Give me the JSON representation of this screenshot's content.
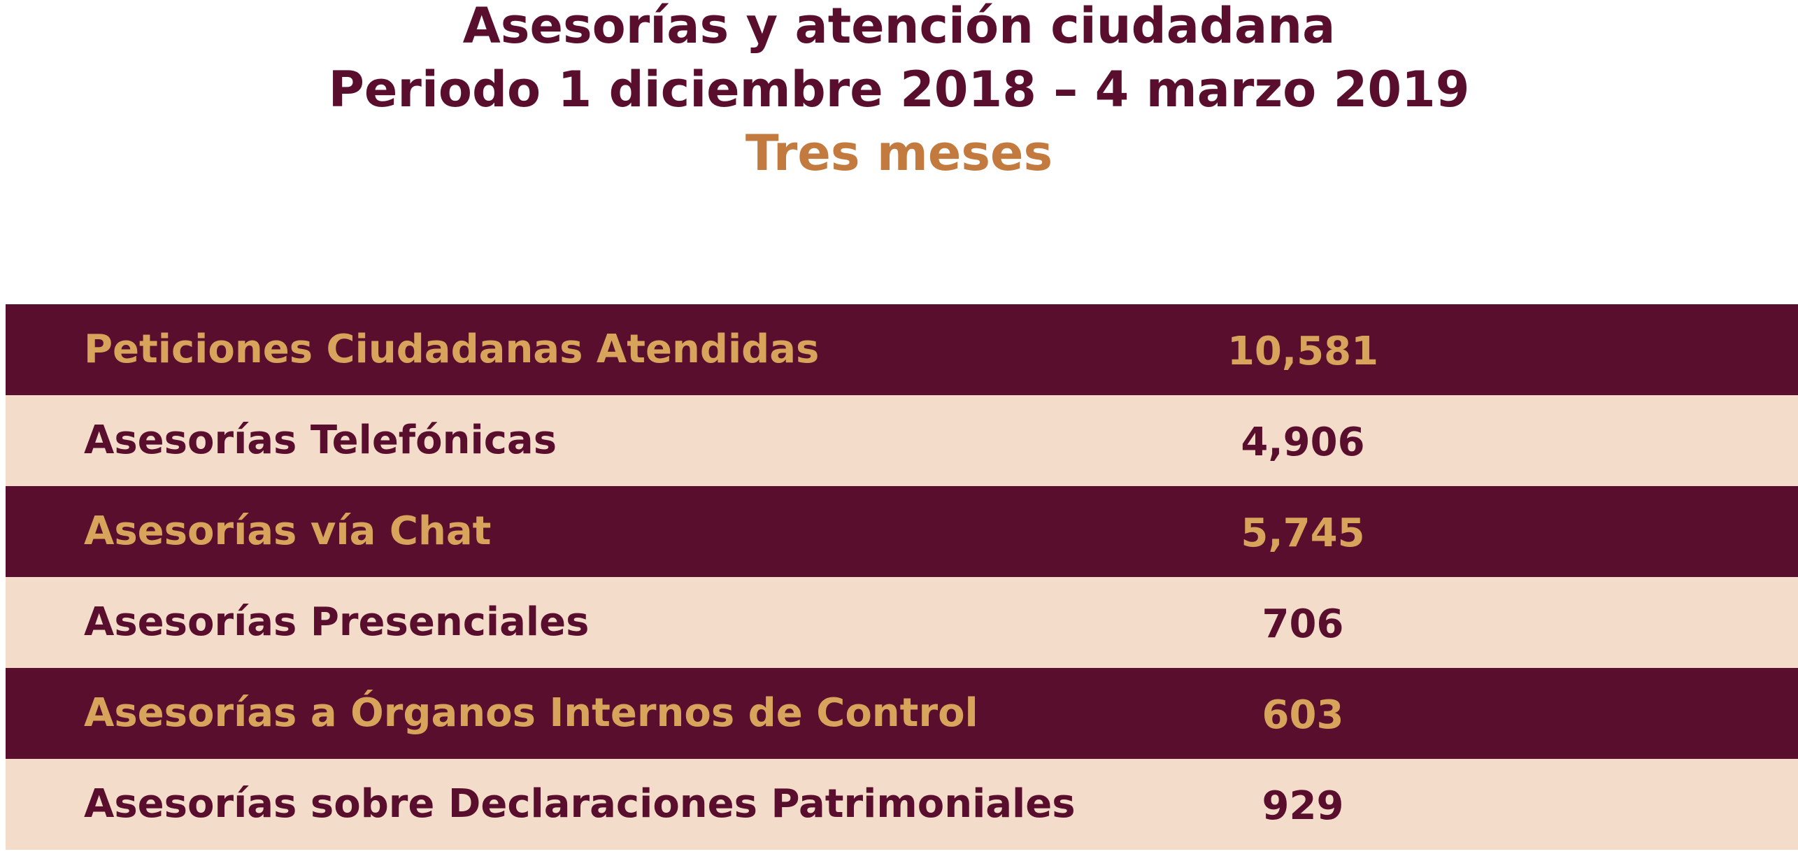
{
  "header": {
    "line1": "Asesorías y atención ciudadana",
    "line2": "Periodo 1 diciembre 2018 – 4 marzo 2019",
    "line3": "Tres meses"
  },
  "colors": {
    "maroon": "#5a0e2d",
    "gold": "#d8a45c",
    "beige": "#f3ddca",
    "orange": "#c27a3f"
  },
  "chart_data": {
    "type": "table",
    "title": "Asesorías y atención ciudadana",
    "subtitle": "Periodo 1 diciembre 2018 – 4 marzo 2019",
    "note": "Tres meses",
    "rows": [
      {
        "label": "Peticiones Ciudadanas Atendidas",
        "value": 10581,
        "value_text": "10,581"
      },
      {
        "label": "Asesorías Telefónicas",
        "value": 4906,
        "value_text": "4,906"
      },
      {
        "label": "Asesorías vía Chat",
        "value": 5745,
        "value_text": "5,745"
      },
      {
        "label": "Asesorías Presenciales",
        "value": 706,
        "value_text": "706"
      },
      {
        "label": "Asesorías a Órganos Internos de Control",
        "value": 603,
        "value_text": "603"
      },
      {
        "label": "Asesorías sobre Declaraciones Patrimoniales",
        "value": 929,
        "value_text": "929"
      }
    ]
  }
}
